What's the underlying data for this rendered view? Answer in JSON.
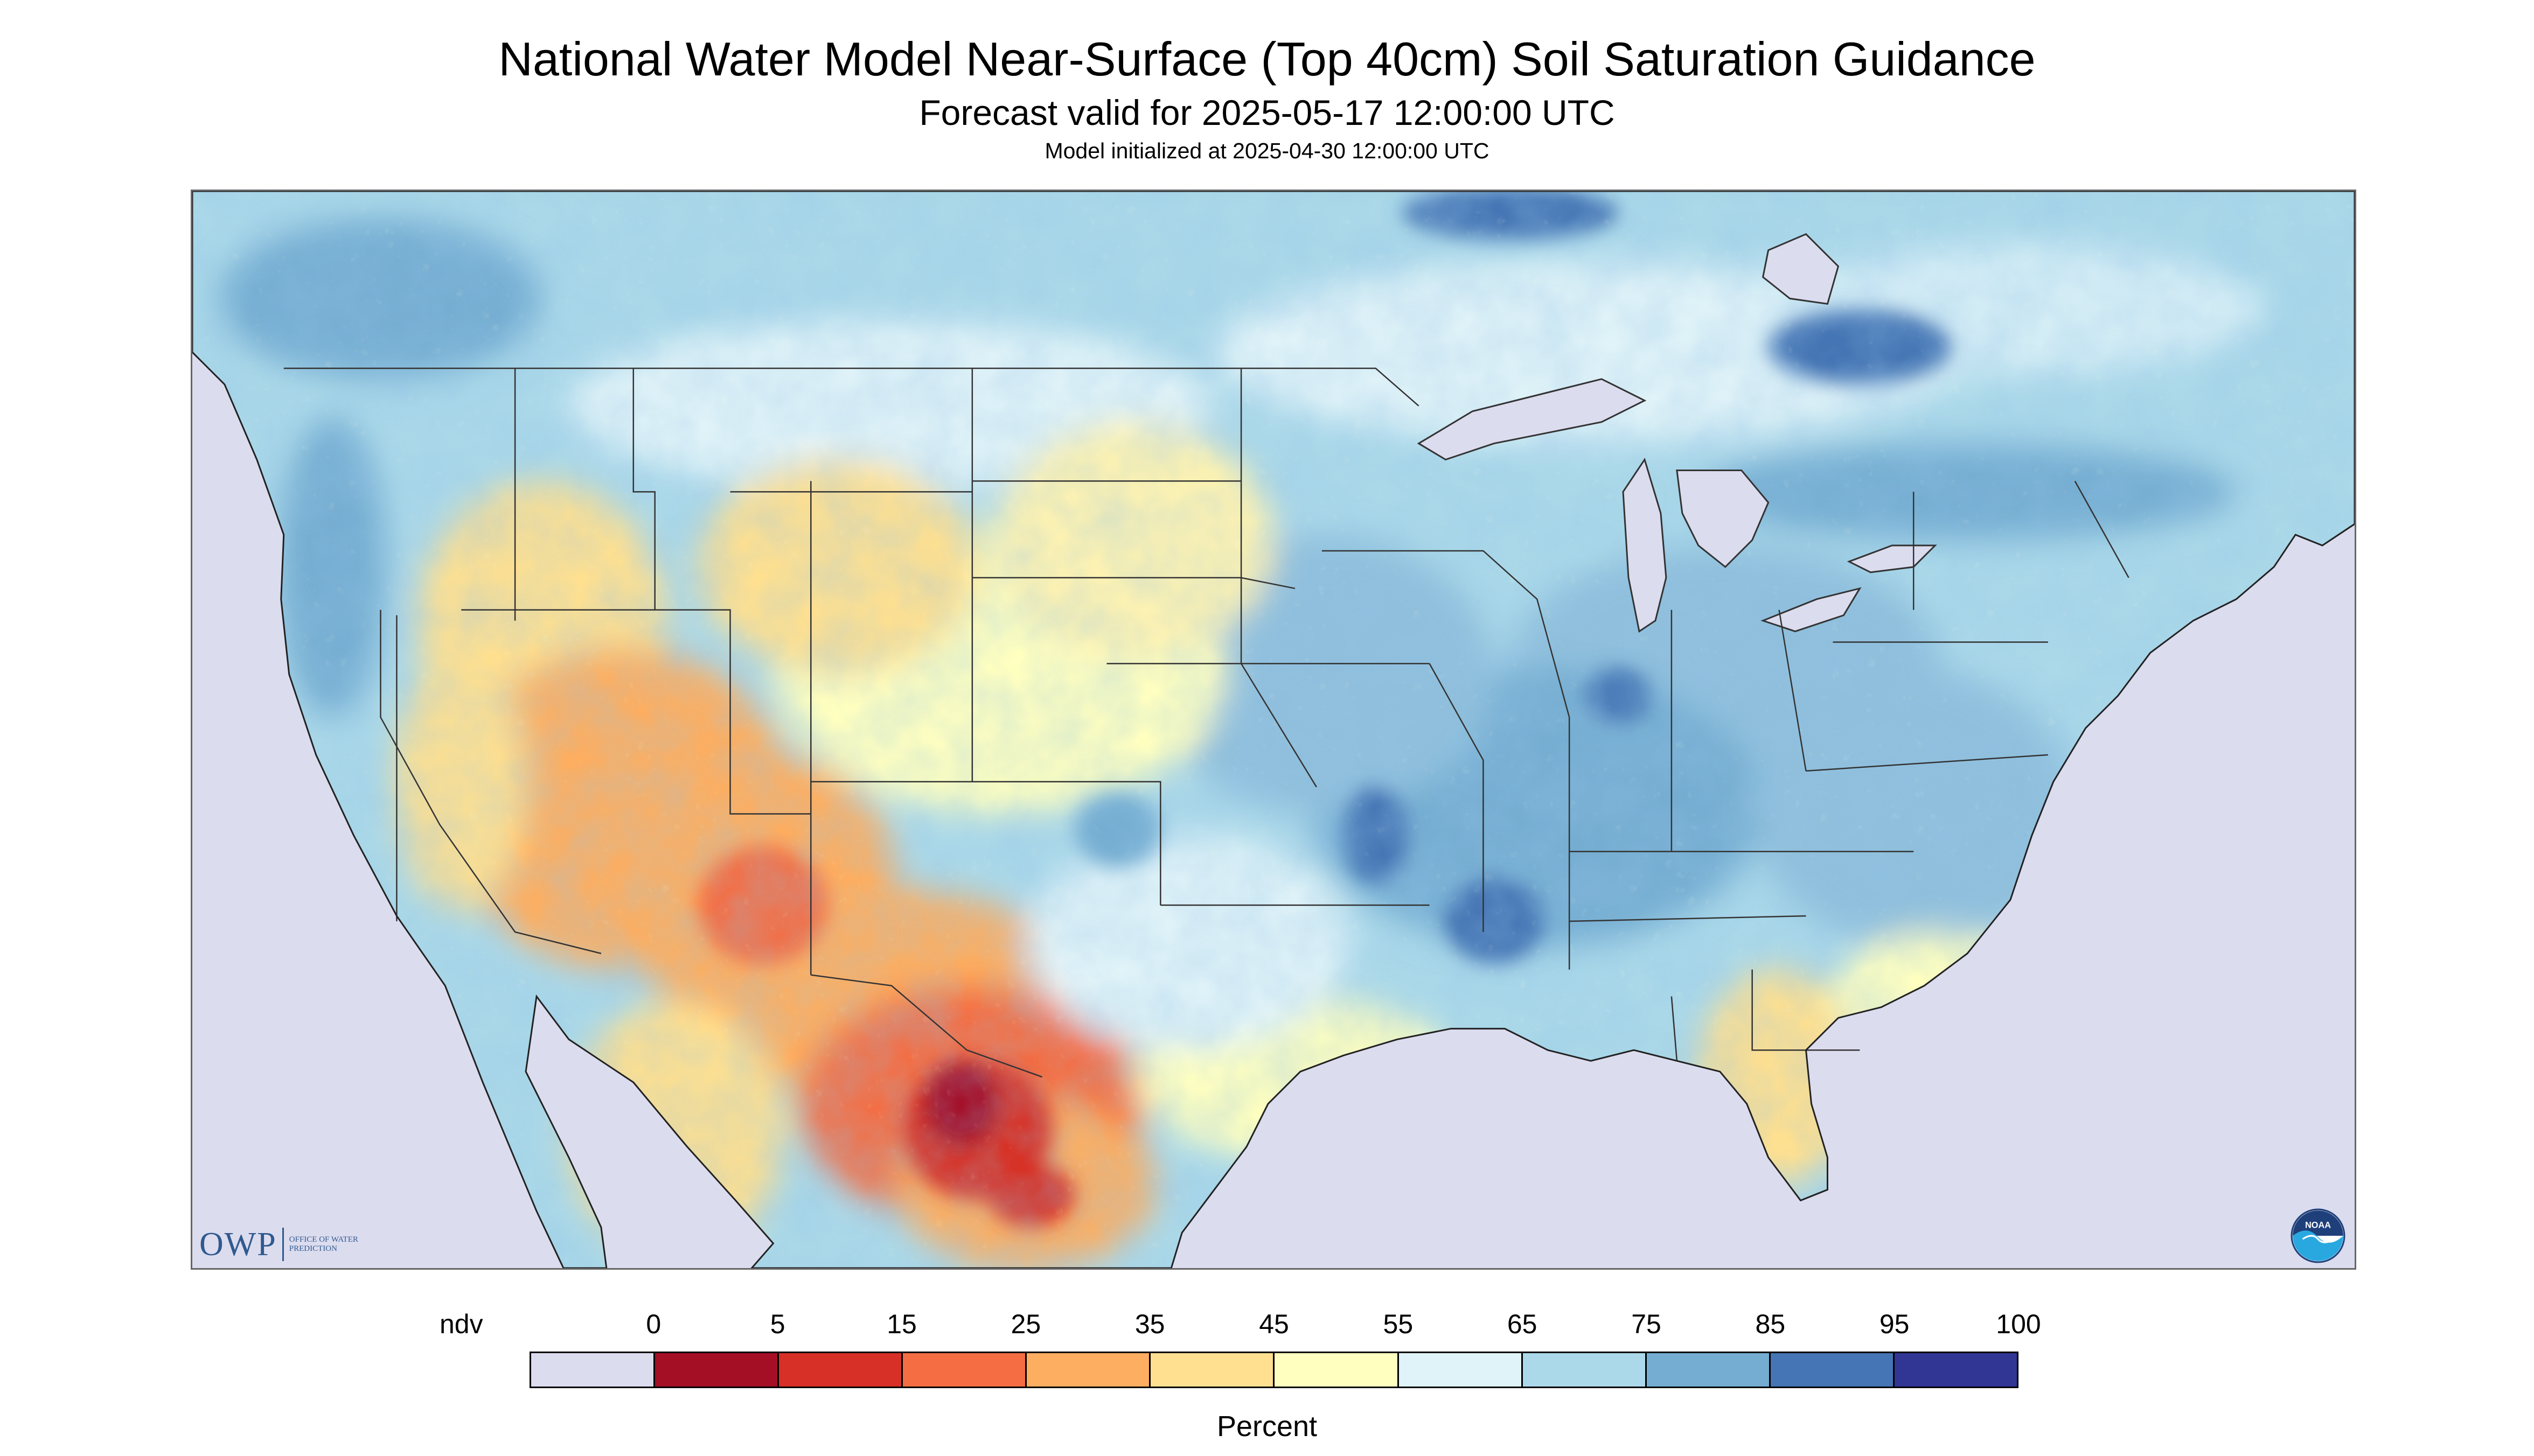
{
  "header": {
    "title": "National Water Model Near-Surface (Top 40cm) Soil Saturation Guidance",
    "forecast_valid": "Forecast valid for 2025-05-17 12:00:00 UTC",
    "model_initialized": "Model initialized at 2025-04-30 12:00:00 UTC"
  },
  "logos": {
    "owp": {
      "mark": "OWP",
      "sub": "OFFICE OF WATER PREDICTION"
    },
    "noaa": {
      "mark": "NOAA"
    }
  },
  "legend": {
    "unit": "Percent",
    "labels": [
      "ndv",
      "0",
      "5",
      "15",
      "25",
      "35",
      "45",
      "55",
      "65",
      "75",
      "85",
      "95",
      "100"
    ],
    "bins": [
      {
        "range": "ndv",
        "color": "#dcdcef"
      },
      {
        "range": "0-5",
        "color": "#a50f26"
      },
      {
        "range": "5-15",
        "color": "#d73027"
      },
      {
        "range": "15-25",
        "color": "#f46d43"
      },
      {
        "range": "25-35",
        "color": "#fdae61"
      },
      {
        "range": "35-45",
        "color": "#fee090"
      },
      {
        "range": "45-55",
        "color": "#ffffbf"
      },
      {
        "range": "55-65",
        "color": "#e0f3f8"
      },
      {
        "range": "65-75",
        "color": "#abd9e9"
      },
      {
        "range": "75-85",
        "color": "#74add1"
      },
      {
        "range": "85-95",
        "color": "#4575b4"
      },
      {
        "range": "95-100",
        "color": "#313695"
      }
    ]
  },
  "map": {
    "projection": "lambert-conformal-conus",
    "nodata_color": "#dcdcef",
    "boundary_color": "#333333"
  }
}
